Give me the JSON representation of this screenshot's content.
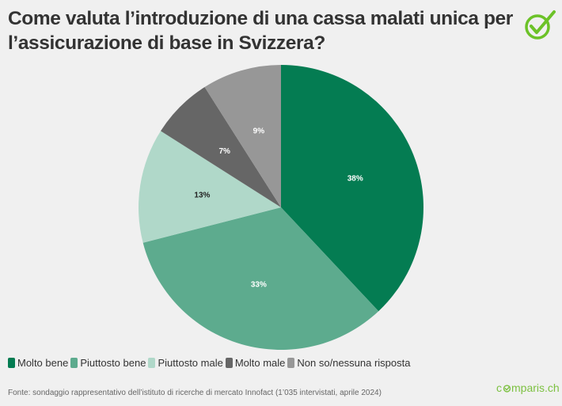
{
  "header": {
    "title": "Come valuta l’introduzione di una cassa malati unica per l’assicurazione di base in Svizzera?",
    "logo_icon": "check-circle-icon",
    "logo_color": "#6cc228"
  },
  "legend": {
    "items": [
      {
        "label": "Molto bene",
        "color": "#047c52"
      },
      {
        "label": "Piuttosto bene",
        "color": "#5dab8e"
      },
      {
        "label": "Piuttosto male",
        "color": "#b0d8c9"
      },
      {
        "label": "Molto male",
        "color": "#666666"
      },
      {
        "label": "Non so/nessuna risposta",
        "color": "#979797"
      }
    ]
  },
  "footer": {
    "source": "Fonte: sondaggio rappresentativo dell’istituto di ricerche di mercato Innofact (1’035 intervistati, aprile 2024)",
    "brand_prefix": "c",
    "brand_suffix": "mparis.ch",
    "brand_color": "#7dc142"
  },
  "chart_data": {
    "type": "pie",
    "title": "Come valuta l’introduzione di una cassa malati unica per l’assicurazione di base in Svizzera?",
    "categories": [
      "Molto bene",
      "Piuttosto bene",
      "Piuttosto male",
      "Molto male",
      "Non so/nessuna risposta"
    ],
    "values": [
      38,
      33,
      13,
      7,
      9
    ],
    "labels": [
      "38%",
      "33%",
      "13%",
      "7%",
      "9%"
    ],
    "colors": [
      "#047c52",
      "#5dab8e",
      "#b0d8c9",
      "#666666",
      "#979797"
    ],
    "label_colors": [
      "#ffffff",
      "#ffffff",
      "#222222",
      "#ffffff",
      "#ffffff"
    ],
    "start_angle": "12 o'clock",
    "direction": "clockwise",
    "legend_position": "bottom-left",
    "unit": "%"
  }
}
